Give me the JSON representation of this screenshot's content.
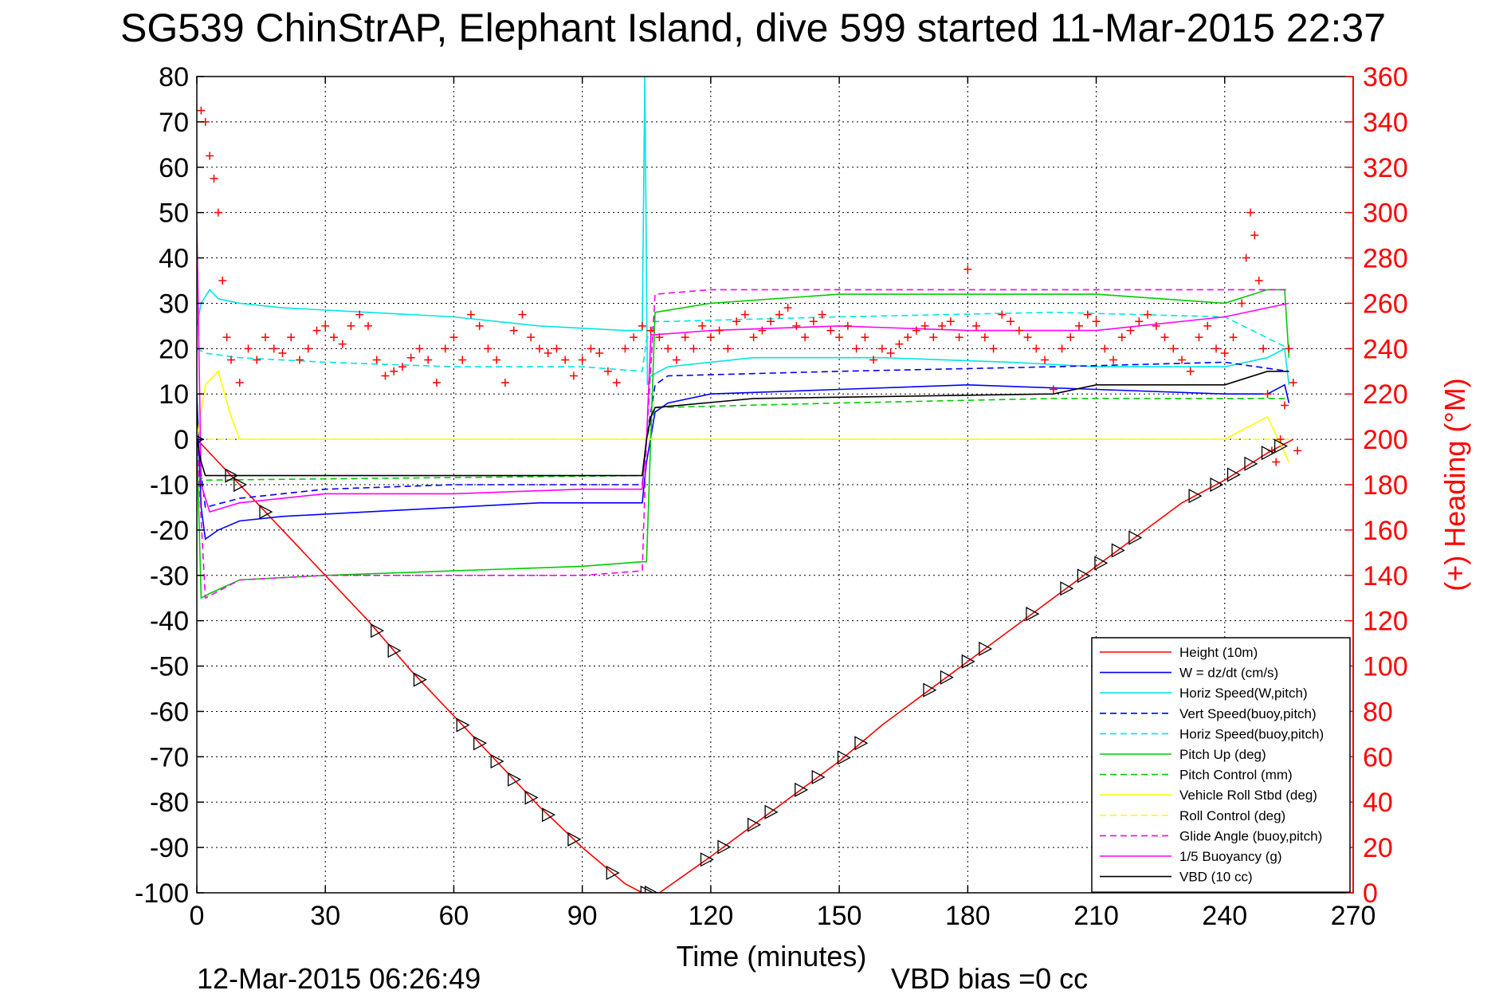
{
  "chart_data": {
    "type": "line",
    "title": "SG539 ChinStrAP, Elephant Island, dive 599 started 11-Mar-2015 22:37",
    "xlabel": "Time (minutes)",
    "ylabel": "",
    "y2label": "(+) Heading (°M)",
    "xlim": [
      0,
      270
    ],
    "ylim": [
      -100,
      80
    ],
    "y2lim": [
      0,
      360
    ],
    "xticks": [
      "0",
      "30",
      "60",
      "90",
      "120",
      "150",
      "180",
      "210",
      "240",
      "270"
    ],
    "yticks": [
      "-100",
      "-90",
      "-80",
      "-70",
      "-60",
      "-50",
      "-40",
      "-30",
      "-20",
      "-10",
      "0",
      "10",
      "20",
      "30",
      "40",
      "50",
      "60",
      "70",
      "80"
    ],
    "y2ticks": [
      "0",
      "20",
      "40",
      "60",
      "80",
      "100",
      "120",
      "140",
      "160",
      "180",
      "200",
      "220",
      "240",
      "260",
      "280",
      "300",
      "320",
      "340",
      "360"
    ],
    "grid": true,
    "legend_position": "lower-right",
    "footer_left": "12-Mar-2015 06:26:49",
    "footer_right": "VBD bias =0 cc",
    "series": [
      {
        "name": "Height (10m)",
        "color": "#ff0000",
        "style": "solid",
        "x": [
          0,
          10,
          20,
          30,
          40,
          50,
          60,
          70,
          80,
          90,
          100,
          104,
          108,
          120,
          130,
          140,
          150,
          160,
          170,
          180,
          190,
          200,
          210,
          220,
          230,
          240,
          250,
          256
        ],
        "y": [
          0,
          -10,
          -20,
          -30,
          -40,
          -51,
          -61,
          -71,
          -81,
          -90,
          -98,
          -100,
          -100,
          -92,
          -85,
          -78,
          -71,
          -63,
          -56,
          -49,
          -42,
          -35,
          -28,
          -21,
          -14,
          -9,
          -3,
          0
        ]
      },
      {
        "name": "W = dz/dt (cm/s)",
        "color": "#0000ff",
        "style": "solid",
        "x": [
          0,
          1,
          2,
          5,
          10,
          20,
          40,
          60,
          80,
          100,
          104,
          105,
          107,
          110,
          120,
          150,
          180,
          210,
          240,
          250,
          254,
          255
        ],
        "y": [
          10,
          -15,
          -22,
          -20,
          -18,
          -17,
          -16,
          -15,
          -14,
          -14,
          -14,
          -5,
          6,
          8,
          10,
          11,
          12,
          11,
          10,
          10,
          12,
          8
        ]
      },
      {
        "name": "Horiz Speed(W,pitch)",
        "color": "#00e5e5",
        "style": "solid",
        "x": [
          0,
          1,
          3,
          5,
          10,
          20,
          40,
          60,
          80,
          100,
          104,
          104.6,
          105.2,
          106,
          110,
          130,
          160,
          190,
          210,
          240,
          250,
          254,
          255
        ],
        "y": [
          25,
          30,
          33,
          31,
          30,
          29,
          28,
          27,
          25,
          24,
          24,
          80,
          12,
          14,
          16,
          18,
          18,
          17,
          16,
          16,
          18,
          20,
          12
        ]
      },
      {
        "name": "Vert Speed(buoy,pitch)",
        "color": "#0000ff",
        "style": "dashed",
        "x": [
          0,
          2,
          10,
          30,
          60,
          90,
          104,
          105,
          107,
          110,
          150,
          200,
          240,
          255
        ],
        "y": [
          0,
          -15,
          -13,
          -11,
          -10,
          -10,
          -10,
          0,
          12,
          14,
          15,
          16,
          17,
          15
        ]
      },
      {
        "name": "Horiz Speed(buoy,pitch)",
        "color": "#00e5e5",
        "style": "dashed",
        "x": [
          0,
          2,
          10,
          30,
          60,
          90,
          104,
          105,
          107,
          110,
          150,
          200,
          240,
          255
        ],
        "y": [
          20,
          19,
          18,
          17,
          16,
          16,
          15,
          22,
          26,
          26,
          27,
          28,
          27,
          20
        ]
      },
      {
        "name": "Pitch Up (deg)",
        "color": "#00cc00",
        "style": "solid",
        "x": [
          0,
          1,
          3,
          10,
          30,
          60,
          90,
          104,
          105,
          107,
          120,
          150,
          180,
          210,
          240,
          250,
          254,
          255
        ],
        "y": [
          0,
          -35,
          -34,
          -31,
          -30,
          -29,
          -28,
          -27,
          -27,
          28,
          30,
          32,
          32,
          32,
          30,
          33,
          33,
          18
        ]
      },
      {
        "name": "Pitch Control (mm)",
        "color": "#00cc00",
        "style": "dashed",
        "x": [
          0,
          2,
          104,
          105,
          107,
          150,
          200,
          255
        ],
        "y": [
          -8,
          -9,
          -8,
          0,
          7,
          8,
          9,
          9
        ]
      },
      {
        "name": "Vehicle Roll Stbd (deg)",
        "color": "#ffff00",
        "style": "solid",
        "x": [
          0,
          2,
          5,
          8,
          10,
          20,
          40,
          60,
          80,
          100,
          104,
          120,
          150,
          180,
          210,
          240,
          250,
          255
        ],
        "y": [
          0,
          12,
          15,
          5,
          0,
          0,
          0,
          0,
          0,
          0,
          0,
          0,
          0,
          0,
          0,
          0,
          5,
          -5
        ]
      },
      {
        "name": "Roll Control (deg)",
        "color": "#ffff00",
        "style": "dashed",
        "x": [
          0,
          5,
          30,
          60,
          90,
          104,
          120,
          150,
          180,
          210,
          240,
          255
        ],
        "y": [
          0,
          0,
          0,
          0,
          0,
          0,
          0,
          0,
          0,
          0,
          0,
          0
        ]
      },
      {
        "name": "Glide Angle (buoy,pitch)",
        "color": "#ff00ff",
        "style": "dashed",
        "x": [
          0,
          2,
          10,
          30,
          60,
          90,
          104,
          105,
          107,
          120,
          150,
          180,
          210,
          240,
          255
        ],
        "y": [
          0,
          -35,
          -31,
          -30,
          -30,
          -30,
          -29,
          0,
          32,
          33,
          33,
          33,
          33,
          33,
          33
        ]
      },
      {
        "name": "1/5 Buoyancy (g)",
        "color": "#ff00ff",
        "style": "solid",
        "x": [
          0,
          1,
          3,
          10,
          30,
          60,
          90,
          104,
          105,
          106,
          120,
          150,
          180,
          210,
          240,
          255
        ],
        "y": [
          48,
          -10,
          -16,
          -14,
          -12,
          -12,
          -11,
          -11,
          0,
          23,
          24,
          25,
          24,
          24,
          27,
          30
        ]
      },
      {
        "name": "VBD (10 cc)",
        "color": "#000000",
        "style": "solid",
        "x": [
          0,
          1,
          2,
          20,
          60,
          104,
          105,
          106,
          107,
          130,
          200,
          210,
          240,
          250,
          255
        ],
        "y": [
          0,
          -5,
          -8,
          -8,
          -8,
          -8,
          0,
          5,
          7,
          9,
          10,
          12,
          12,
          15,
          15
        ]
      }
    ],
    "heading_points": {
      "name": "(+) Heading (°M)",
      "color": "#ff0000",
      "x": [
        0,
        1,
        2,
        3,
        4,
        5,
        6,
        7,
        8,
        10,
        12,
        14,
        16,
        18,
        20,
        22,
        24,
        26,
        28,
        30,
        32,
        34,
        36,
        38,
        40,
        42,
        44,
        46,
        48,
        50,
        52,
        54,
        56,
        58,
        60,
        62,
        64,
        66,
        68,
        70,
        72,
        74,
        76,
        78,
        80,
        82,
        84,
        86,
        88,
        90,
        92,
        94,
        96,
        98,
        100,
        102,
        104,
        106,
        108,
        110,
        112,
        114,
        116,
        118,
        120,
        122,
        124,
        126,
        128,
        130,
        132,
        134,
        136,
        138,
        140,
        142,
        144,
        146,
        148,
        150,
        152,
        154,
        156,
        158,
        160,
        162,
        164,
        166,
        168,
        170,
        172,
        174,
        176,
        178,
        180,
        182,
        184,
        186,
        188,
        190,
        192,
        194,
        196,
        198,
        200,
        202,
        204,
        206,
        208,
        210,
        212,
        214,
        216,
        218,
        220,
        222,
        224,
        226,
        228,
        230,
        232,
        234,
        236,
        238,
        240,
        242,
        244,
        245,
        246,
        247,
        248,
        249,
        250,
        251,
        252,
        253,
        254,
        255,
        256,
        257
      ],
      "y": [
        320,
        345,
        340,
        325,
        315,
        300,
        270,
        245,
        235,
        225,
        240,
        235,
        245,
        240,
        238,
        245,
        235,
        240,
        248,
        250,
        245,
        242,
        250,
        255,
        250,
        235,
        228,
        230,
        232,
        236,
        240,
        235,
        225,
        240,
        245,
        235,
        255,
        250,
        240,
        235,
        225,
        248,
        255,
        245,
        240,
        238,
        240,
        235,
        228,
        235,
        240,
        238,
        230,
        225,
        240,
        245,
        250,
        248,
        245,
        240,
        235,
        245,
        240,
        250,
        245,
        248,
        240,
        252,
        255,
        245,
        248,
        252,
        255,
        258,
        250,
        245,
        252,
        255,
        248,
        245,
        250,
        240,
        245,
        235,
        240,
        238,
        242,
        245,
        248,
        250,
        245,
        250,
        252,
        245,
        275,
        250,
        245,
        240,
        255,
        252,
        248,
        245,
        240,
        235,
        222,
        240,
        245,
        250,
        255,
        252,
        240,
        235,
        245,
        248,
        252,
        255,
        250,
        245,
        240,
        235,
        230,
        245,
        250,
        240,
        238,
        245,
        260,
        280,
        300,
        290,
        270,
        240,
        220,
        195,
        190,
        200,
        215,
        240,
        225,
        195
      ]
    },
    "vbd_markers": {
      "x": [
        0,
        8,
        10,
        16,
        42,
        46,
        52,
        62,
        66,
        70,
        74,
        78,
        82,
        88,
        97,
        105,
        106,
        119,
        123,
        130,
        134,
        141,
        145,
        151,
        155,
        171,
        175,
        180,
        184,
        195,
        203,
        207,
        211,
        215,
        219,
        233,
        238,
        242,
        246,
        250,
        253
      ]
    }
  }
}
